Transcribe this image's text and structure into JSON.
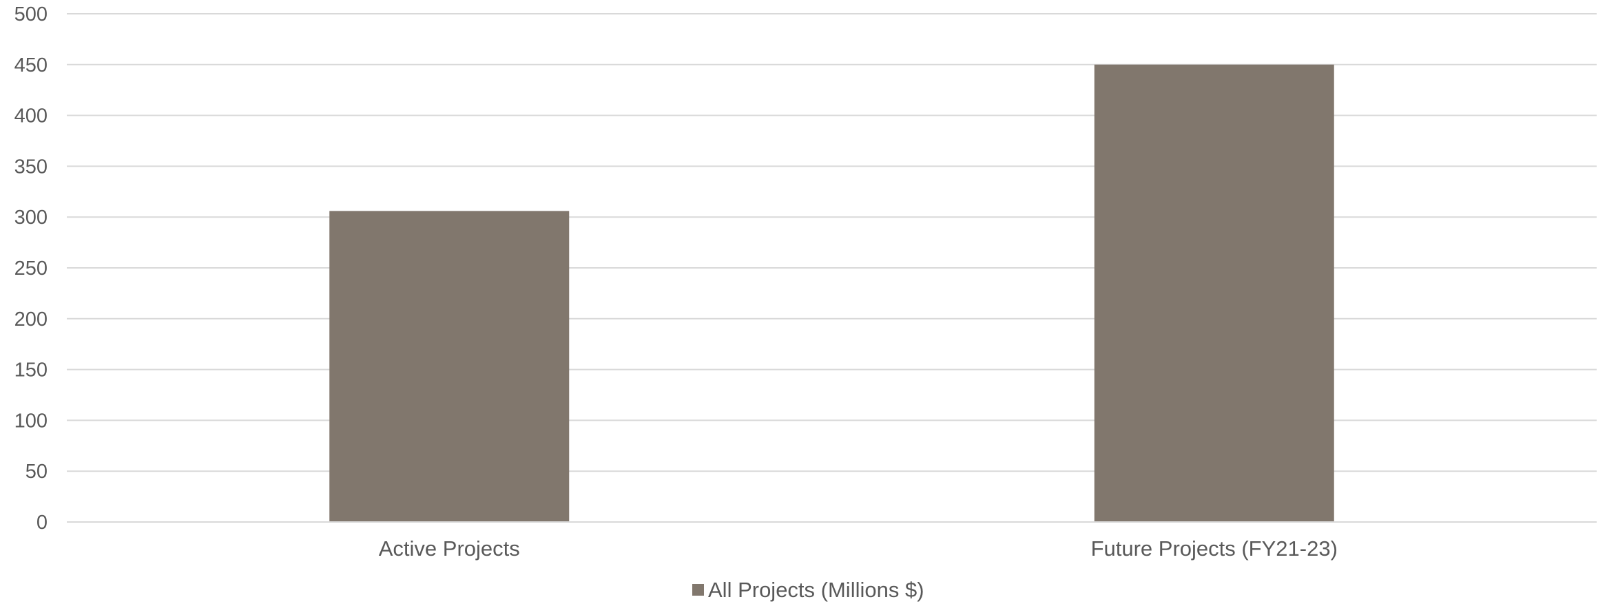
{
  "chart_data": {
    "type": "bar",
    "categories": [
      "Active Projects",
      "Future Projects (FY21-23)"
    ],
    "series": [
      {
        "name": "All Projects (Millions $)",
        "values": [
          306,
          450
        ],
        "color": "#81776d"
      }
    ],
    "ylim": [
      0,
      500
    ],
    "yticks": [
      0,
      50,
      100,
      150,
      200,
      250,
      300,
      350,
      400,
      450,
      500
    ],
    "grid": true,
    "legend_position": "bottom-center",
    "title": "",
    "xlabel": "",
    "ylabel": ""
  }
}
